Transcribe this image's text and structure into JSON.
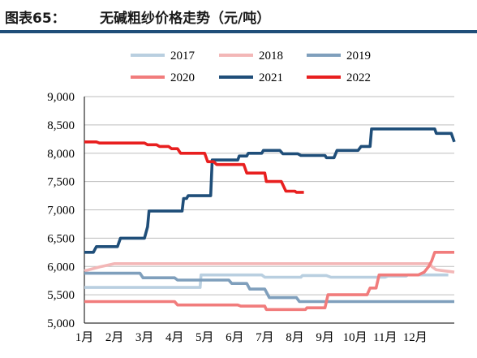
{
  "header": {
    "figure_label": "图表65：",
    "title": "无碱粗纱价格走势（元/吨）"
  },
  "colors": {
    "rule": "#1f4e79",
    "series": [
      "#b9cfe0",
      "#f3b7b7",
      "#7f9fbc",
      "#f17c7c",
      "#1f4e79",
      "#e81f1f"
    ]
  },
  "chart_data": {
    "type": "line",
    "title": "无碱粗纱价格走势（元/吨）",
    "xlabel": "",
    "ylabel": "",
    "ylim": [
      5000,
      9000
    ],
    "yticks": [
      5000,
      5500,
      6000,
      6500,
      7000,
      7500,
      8000,
      8500,
      9000
    ],
    "ytick_labels": [
      "5,000",
      "5,500",
      "6,000",
      "6,500",
      "7,000",
      "7,500",
      "8,000",
      "8,500",
      "9,000"
    ],
    "xlim": [
      1,
      13.3
    ],
    "categories": [
      "1月",
      "2月",
      "3月",
      "4月",
      "5月",
      "6月",
      "7月",
      "8月",
      "9月",
      "10月",
      "11月",
      "12月"
    ],
    "grid": "horizontal",
    "legend_position": "top",
    "series": [
      {
        "name": "2017",
        "points": [
          [
            1.0,
            5630
          ],
          [
            4.85,
            5630
          ],
          [
            4.88,
            5850
          ],
          [
            6.9,
            5850
          ],
          [
            7.0,
            5810
          ],
          [
            8.2,
            5810
          ],
          [
            8.25,
            5840
          ],
          [
            9.05,
            5840
          ],
          [
            9.2,
            5810
          ],
          [
            11.0,
            5810
          ],
          [
            11.1,
            5830
          ],
          [
            11.7,
            5830
          ],
          [
            11.75,
            5850
          ],
          [
            13.1,
            5850
          ]
        ]
      },
      {
        "name": "2018",
        "points": [
          [
            1.0,
            5920
          ],
          [
            1.5,
            5990
          ],
          [
            2.0,
            6050
          ],
          [
            12.5,
            6050
          ],
          [
            12.55,
            6000
          ],
          [
            12.7,
            5940
          ],
          [
            13.3,
            5900
          ]
        ]
      },
      {
        "name": "2019",
        "points": [
          [
            1.0,
            5880
          ],
          [
            2.85,
            5880
          ],
          [
            2.95,
            5800
          ],
          [
            4.0,
            5800
          ],
          [
            4.1,
            5760
          ],
          [
            5.8,
            5760
          ],
          [
            5.9,
            5700
          ],
          [
            6.4,
            5700
          ],
          [
            6.5,
            5600
          ],
          [
            7.0,
            5600
          ],
          [
            7.15,
            5450
          ],
          [
            8.05,
            5450
          ],
          [
            8.15,
            5380
          ],
          [
            13.3,
            5380
          ]
        ]
      },
      {
        "name": "2020",
        "points": [
          [
            1.0,
            5380
          ],
          [
            4.0,
            5380
          ],
          [
            4.1,
            5320
          ],
          [
            6.1,
            5320
          ],
          [
            6.2,
            5300
          ],
          [
            7.0,
            5300
          ],
          [
            7.05,
            5240
          ],
          [
            8.35,
            5240
          ],
          [
            8.4,
            5270
          ],
          [
            9.0,
            5270
          ],
          [
            9.1,
            5500
          ],
          [
            10.4,
            5500
          ],
          [
            10.5,
            5620
          ],
          [
            10.7,
            5620
          ],
          [
            10.8,
            5850
          ],
          [
            12.1,
            5850
          ],
          [
            12.3,
            5900
          ],
          [
            12.45,
            6000
          ],
          [
            12.55,
            6100
          ],
          [
            12.65,
            6250
          ],
          [
            13.3,
            6250
          ]
        ]
      },
      {
        "name": "2021",
        "points": [
          [
            1.0,
            6250
          ],
          [
            1.3,
            6250
          ],
          [
            1.4,
            6350
          ],
          [
            2.1,
            6350
          ],
          [
            2.2,
            6500
          ],
          [
            3.0,
            6500
          ],
          [
            3.1,
            6700
          ],
          [
            3.15,
            6980
          ],
          [
            4.25,
            6980
          ],
          [
            4.3,
            7200
          ],
          [
            4.4,
            7200
          ],
          [
            4.45,
            7250
          ],
          [
            5.2,
            7250
          ],
          [
            5.25,
            7880
          ],
          [
            6.1,
            7880
          ],
          [
            6.15,
            7950
          ],
          [
            6.4,
            7950
          ],
          [
            6.45,
            8000
          ],
          [
            6.9,
            8000
          ],
          [
            6.95,
            8050
          ],
          [
            7.5,
            8050
          ],
          [
            7.6,
            7990
          ],
          [
            8.1,
            7990
          ],
          [
            8.2,
            7960
          ],
          [
            9.0,
            7960
          ],
          [
            9.05,
            7920
          ],
          [
            9.3,
            7920
          ],
          [
            9.4,
            8050
          ],
          [
            10.1,
            8050
          ],
          [
            10.2,
            8120
          ],
          [
            10.5,
            8120
          ],
          [
            10.55,
            8430
          ],
          [
            12.65,
            8430
          ],
          [
            12.7,
            8350
          ],
          [
            13.2,
            8350
          ],
          [
            13.3,
            8200
          ]
        ]
      },
      {
        "name": "2022",
        "points": [
          [
            1.0,
            8200
          ],
          [
            1.4,
            8200
          ],
          [
            1.5,
            8180
          ],
          [
            3.0,
            8180
          ],
          [
            3.1,
            8150
          ],
          [
            3.4,
            8150
          ],
          [
            3.5,
            8120
          ],
          [
            3.8,
            8120
          ],
          [
            3.9,
            8080
          ],
          [
            4.1,
            8080
          ],
          [
            4.2,
            8000
          ],
          [
            5.0,
            8000
          ],
          [
            5.1,
            7850
          ],
          [
            5.3,
            7850
          ],
          [
            5.4,
            7800
          ],
          [
            6.3,
            7800
          ],
          [
            6.4,
            7650
          ],
          [
            7.0,
            7650
          ],
          [
            7.05,
            7500
          ],
          [
            7.55,
            7500
          ],
          [
            7.7,
            7330
          ],
          [
            8.0,
            7330
          ],
          [
            8.05,
            7310
          ],
          [
            8.3,
            7310
          ]
        ]
      }
    ]
  }
}
